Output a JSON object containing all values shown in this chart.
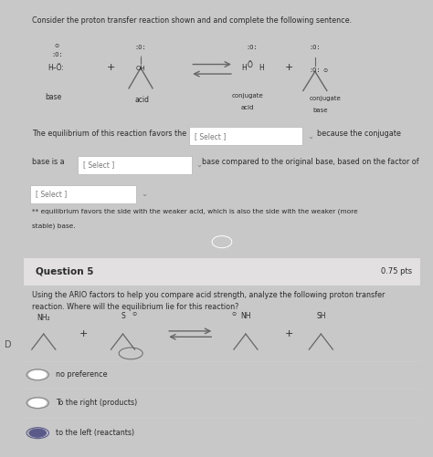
{
  "bg_color": "#c8c8c8",
  "section1_bg": "#f2f1f1",
  "section2_bg": "#f2f1f1",
  "section2_header_bg": "#e2e0e0",
  "title1": "Consider the proton transfer reaction shown and and complete the following sentence.",
  "text_equil": "The equilibrium of this reaction favors the",
  "text_because": "because the conjugate",
  "text_base_is": "base is a",
  "text_base_compared": "base compared to the original base, based on the factor of",
  "footnote_line1": "** equilibrium favors the side with the weaker acid, which is also the side with the weaker (more",
  "footnote_line2": "stable) base.",
  "q5_title": "Question 5",
  "q5_pts": "0.75 pts",
  "q5_line1": "Using the ARIO factors to help you compare acid strength, analyze the following proton transfer",
  "q5_line2": "reaction. Where will the equilibrium lie for this reaction?",
  "options": [
    "no preference",
    "To the right (products)",
    "to the left (reactants)"
  ],
  "selected_option": 2,
  "select_box_text": "[ Select ]",
  "text_color": "#2a2a2a",
  "light_text": "#555555",
  "box_edge": "#aaaaaa",
  "line_color": "#666666"
}
